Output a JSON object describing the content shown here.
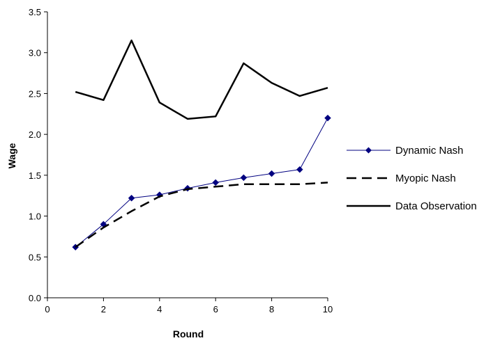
{
  "chart_data": {
    "type": "line",
    "xlabel": "Round",
    "ylabel": "Wage",
    "xlim": [
      0,
      10
    ],
    "ylim": [
      0.0,
      3.5
    ],
    "x_ticks": [
      "0",
      "2",
      "4",
      "6",
      "8",
      "10"
    ],
    "y_ticks": [
      "0.0",
      "0.5",
      "1.0",
      "1.5",
      "2.0",
      "2.5",
      "3.0",
      "3.5"
    ],
    "grid": false,
    "legend_position": "right",
    "x": [
      1,
      2,
      3,
      4,
      5,
      6,
      7,
      8,
      9,
      10
    ],
    "series": [
      {
        "name": "Dynamic Nash",
        "style": "solid-thin-with-diamond-markers",
        "color": "#000080",
        "values": [
          0.62,
          0.9,
          1.22,
          1.26,
          1.34,
          1.41,
          1.47,
          1.52,
          1.57,
          2.2
        ]
      },
      {
        "name": "Myopic Nash",
        "style": "dashed",
        "color": "#000000",
        "values": [
          0.62,
          0.86,
          1.06,
          1.24,
          1.33,
          1.36,
          1.39,
          1.39,
          1.39,
          1.41
        ]
      },
      {
        "name": "Data Observation",
        "style": "solid-thick",
        "color": "#000000",
        "values": [
          2.52,
          2.42,
          3.15,
          2.39,
          2.19,
          2.22,
          2.87,
          2.63,
          2.47,
          2.57
        ]
      }
    ]
  }
}
